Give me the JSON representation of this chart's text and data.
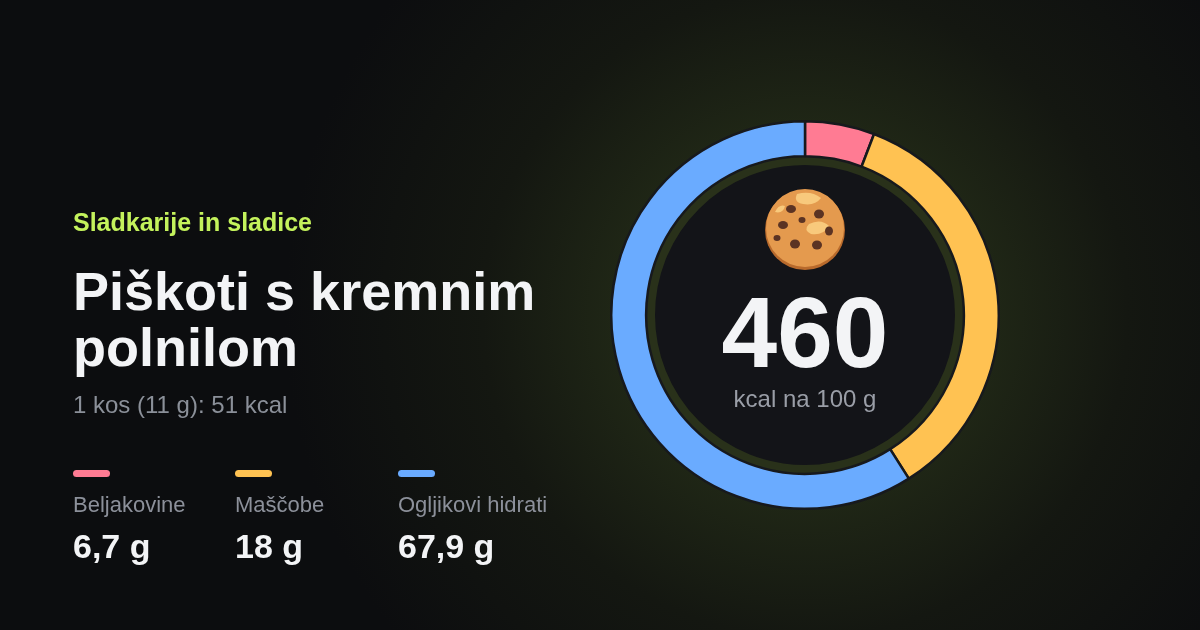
{
  "chart_data": {
    "type": "donut",
    "title": "Piškoti s kremnim polnilom",
    "subtitle": "1 kos (11 g): 51 kcal",
    "categories": [
      "Beljakovine",
      "Maščobe",
      "Ogljikovi hidrati"
    ],
    "values": [
      5.8,
      35.2,
      59.0
    ],
    "colors": [
      "#ff7b93",
      "#ffc252",
      "#6aabff"
    ],
    "legend": "left",
    "annotations": [
      "Sladkarije in sladice",
      "460",
      "kcal na 100 g",
      "6,7 g",
      "18 g",
      "67,9 g"
    ]
  }
}
